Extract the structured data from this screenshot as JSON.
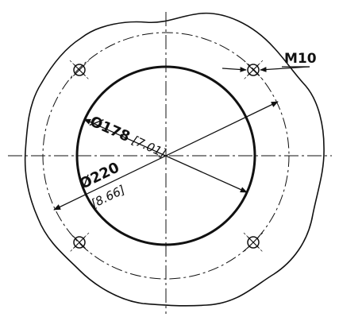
{
  "drawing": {
    "bolt_label": "M10",
    "inner_diameter_mm": "Ø178",
    "inner_diameter_in": "[7.01]",
    "outer_diameter_mm": "Ø220",
    "outer_diameter_in": "[8.66]"
  },
  "colors": {
    "line": "#111111",
    "background": "#ffffff"
  }
}
